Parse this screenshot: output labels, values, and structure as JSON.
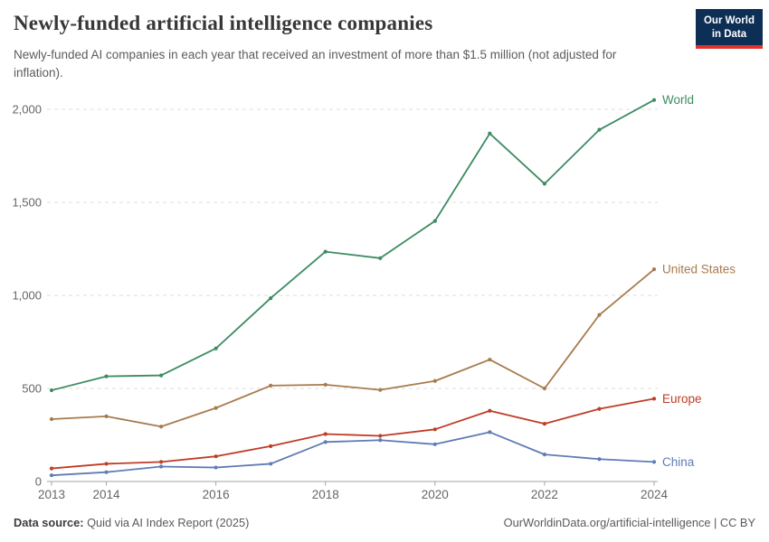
{
  "header": {
    "title": "Newly-funded artificial intelligence companies",
    "subtitle": "Newly-funded AI companies in each year that received an investment of more than $1.5 million (not adjusted for inflation)."
  },
  "logo": {
    "line1": "Our World",
    "line2": "in Data",
    "bg_color": "#0d2e55",
    "accent_color": "#e0332c"
  },
  "chart_data": {
    "type": "line",
    "title": "Newly-funded artificial intelligence companies",
    "x": [
      2013,
      2014,
      2015,
      2016,
      2017,
      2018,
      2019,
      2020,
      2021,
      2022,
      2023,
      2024
    ],
    "x_tick_labels": [
      "2013",
      "2014",
      "2016",
      "2018",
      "2020",
      "2022",
      "2024"
    ],
    "y_ticks": [
      {
        "value": 0,
        "label": "0"
      },
      {
        "value": 500,
        "label": "500"
      },
      {
        "value": 1000,
        "label": "1,000"
      },
      {
        "value": 1500,
        "label": "1,500"
      },
      {
        "value": 2000,
        "label": "2,000"
      }
    ],
    "ylim": [
      0,
      2000
    ],
    "grid": "horizontal-dashed",
    "legend_position": "right-end-labels",
    "series": [
      {
        "name": "World",
        "color": "#3c8c62",
        "values": [
          490,
          565,
          570,
          715,
          985,
          1235,
          1200,
          1400,
          1870,
          1600,
          1890,
          2050
        ]
      },
      {
        "name": "United States",
        "color": "#a87b4e",
        "values": [
          335,
          350,
          295,
          395,
          515,
          520,
          492,
          540,
          655,
          500,
          895,
          1140
        ]
      },
      {
        "name": "Europe",
        "color": "#be3d26",
        "values": [
          70,
          95,
          105,
          135,
          190,
          255,
          245,
          280,
          380,
          310,
          390,
          445
        ]
      },
      {
        "name": "China",
        "color": "#5f7cb5",
        "values": [
          33,
          50,
          80,
          75,
          95,
          212,
          222,
          200,
          265,
          145,
          120,
          105
        ]
      }
    ]
  },
  "footer": {
    "source_label": "Data source:",
    "source_value": "Quid via AI Index Report (2025)",
    "credit": "OurWorldinData.org/artificial-intelligence | CC BY"
  }
}
